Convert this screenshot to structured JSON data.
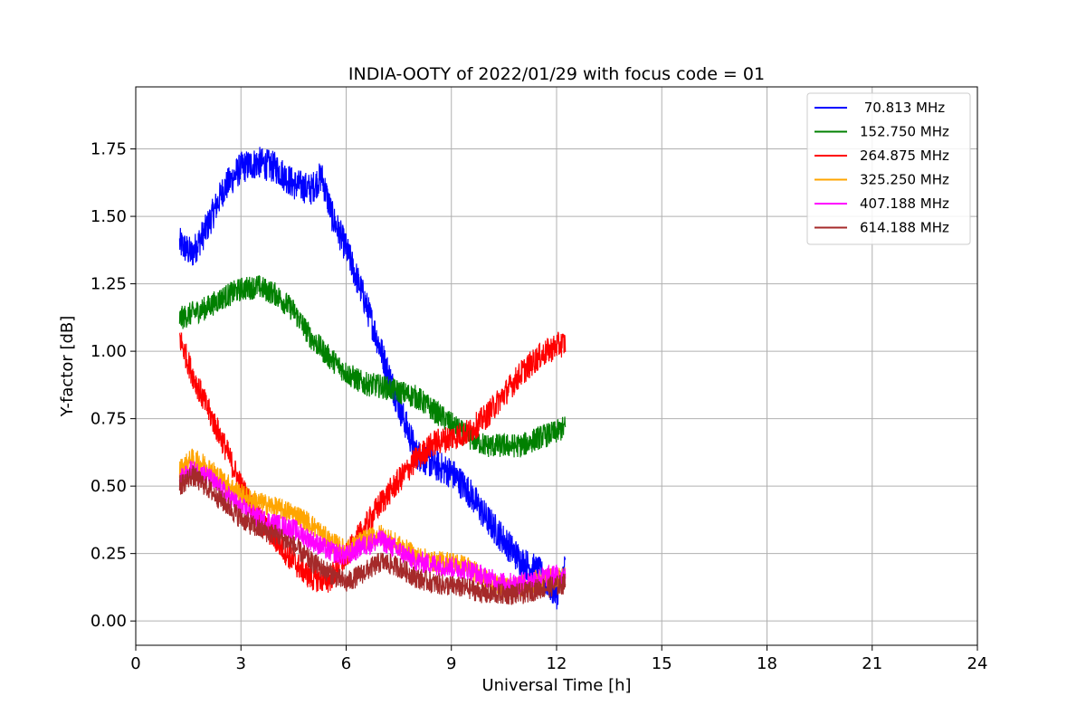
{
  "chart_data": {
    "type": "line",
    "title": "INDIA-OOTY of 2022/01/29 with focus code = 01",
    "xlabel": "Universal Time [h]",
    "ylabel": "Y-factor [dB]",
    "xlim": [
      0,
      24
    ],
    "ylim": [
      -0.09,
      1.98
    ],
    "xticks": [
      0,
      3,
      6,
      9,
      12,
      15,
      18,
      21,
      24
    ],
    "xtick_labels": [
      "0",
      "3",
      "6",
      "9",
      "12",
      "15",
      "18",
      "21",
      "24"
    ],
    "yticks": [
      0.0,
      0.25,
      0.5,
      0.75,
      1.0,
      1.25,
      1.5,
      1.75
    ],
    "ytick_labels": [
      "0.00",
      "0.25",
      "0.50",
      "0.75",
      "1.00",
      "1.25",
      "1.50",
      "1.75"
    ],
    "grid": true,
    "legend_position": "top-right",
    "series": [
      {
        "name": " 70.813 MHz",
        "color": "#0000ff",
        "noise": 0.06,
        "x": [
          1.25,
          1.6,
          2.0,
          2.5,
          3.0,
          3.5,
          4.0,
          4.5,
          5.0,
          5.3,
          5.6,
          6.0,
          6.5,
          7.0,
          7.5,
          8.0,
          8.5,
          9.0,
          9.5,
          10.0,
          10.5,
          11.0,
          11.5,
          12.0,
          12.25
        ],
        "y": [
          1.4,
          1.36,
          1.45,
          1.6,
          1.68,
          1.7,
          1.68,
          1.62,
          1.6,
          1.65,
          1.5,
          1.38,
          1.2,
          1.0,
          0.8,
          0.62,
          0.58,
          0.55,
          0.48,
          0.38,
          0.3,
          0.22,
          0.18,
          0.1,
          0.2
        ]
      },
      {
        "name": "152.750 MHz",
        "color": "#008000",
        "noise": 0.045,
        "x": [
          1.25,
          1.6,
          2.0,
          2.5,
          3.0,
          3.5,
          4.0,
          4.5,
          5.0,
          5.5,
          6.0,
          6.5,
          7.0,
          7.5,
          8.0,
          8.5,
          9.0,
          9.5,
          10.0,
          10.5,
          11.0,
          11.5,
          12.0,
          12.25
        ],
        "y": [
          1.12,
          1.14,
          1.16,
          1.2,
          1.23,
          1.24,
          1.21,
          1.15,
          1.05,
          0.98,
          0.92,
          0.88,
          0.87,
          0.85,
          0.83,
          0.78,
          0.73,
          0.68,
          0.65,
          0.65,
          0.65,
          0.68,
          0.7,
          0.72
        ]
      },
      {
        "name": "264.875 MHz",
        "color": "#ff0000",
        "noise": 0.05,
        "x": [
          1.25,
          1.6,
          2.0,
          2.5,
          3.0,
          3.5,
          4.0,
          4.5,
          5.0,
          5.5,
          6.0,
          6.5,
          7.0,
          7.5,
          8.0,
          8.5,
          9.0,
          9.5,
          10.0,
          10.5,
          11.0,
          11.5,
          12.0,
          12.25
        ],
        "y": [
          1.05,
          0.92,
          0.8,
          0.66,
          0.5,
          0.38,
          0.3,
          0.22,
          0.16,
          0.15,
          0.24,
          0.34,
          0.44,
          0.52,
          0.6,
          0.66,
          0.68,
          0.7,
          0.76,
          0.84,
          0.92,
          0.98,
          1.02,
          1.03
        ]
      },
      {
        "name": "325.250 MHz",
        "color": "#ffa500",
        "noise": 0.04,
        "x": [
          1.25,
          1.6,
          2.0,
          2.5,
          3.0,
          3.5,
          4.0,
          4.5,
          5.0,
          5.5,
          6.0,
          6.5,
          7.0,
          7.5,
          8.0,
          8.5,
          9.0,
          9.5,
          10.0,
          10.5,
          11.0,
          11.5,
          12.0,
          12.25
        ],
        "y": [
          0.56,
          0.6,
          0.58,
          0.52,
          0.47,
          0.44,
          0.42,
          0.4,
          0.36,
          0.3,
          0.26,
          0.3,
          0.32,
          0.28,
          0.24,
          0.22,
          0.22,
          0.2,
          0.15,
          0.12,
          0.13,
          0.15,
          0.16,
          0.16
        ]
      },
      {
        "name": "407.188 MHz",
        "color": "#ff00ff",
        "noise": 0.04,
        "x": [
          1.25,
          1.6,
          2.0,
          2.5,
          3.0,
          3.5,
          4.0,
          4.5,
          5.0,
          5.5,
          6.0,
          6.5,
          7.0,
          7.5,
          8.0,
          8.5,
          9.0,
          9.5,
          10.0,
          10.5,
          11.0,
          11.5,
          12.0,
          12.25
        ],
        "y": [
          0.52,
          0.56,
          0.54,
          0.48,
          0.42,
          0.38,
          0.36,
          0.34,
          0.3,
          0.26,
          0.24,
          0.28,
          0.3,
          0.26,
          0.22,
          0.21,
          0.2,
          0.19,
          0.16,
          0.14,
          0.14,
          0.16,
          0.17,
          0.17
        ]
      },
      {
        "name": "614.188 MHz",
        "color": "#a52a2a",
        "noise": 0.04,
        "x": [
          1.25,
          1.6,
          2.0,
          2.5,
          3.0,
          3.5,
          4.0,
          4.5,
          5.0,
          5.5,
          6.0,
          6.5,
          7.0,
          7.5,
          8.0,
          8.5,
          9.0,
          9.5,
          10.0,
          10.5,
          11.0,
          11.5,
          12.0,
          12.25
        ],
        "y": [
          0.5,
          0.54,
          0.5,
          0.44,
          0.38,
          0.34,
          0.32,
          0.28,
          0.22,
          0.18,
          0.14,
          0.18,
          0.22,
          0.2,
          0.16,
          0.14,
          0.13,
          0.12,
          0.1,
          0.1,
          0.1,
          0.12,
          0.13,
          0.14
        ]
      }
    ]
  }
}
